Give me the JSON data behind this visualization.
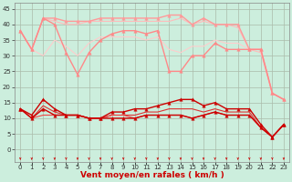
{
  "background_color": "#cceedd",
  "grid_color": "#aabbaa",
  "xlabel": "Vent moyen/en rafales ( km/h )",
  "xlabel_color": "#cc0000",
  "xlabel_fontsize": 6.5,
  "yticks": [
    0,
    5,
    10,
    15,
    20,
    25,
    30,
    35,
    40,
    45
  ],
  "xticks": [
    0,
    1,
    2,
    3,
    4,
    5,
    6,
    7,
    8,
    9,
    10,
    11,
    12,
    13,
    14,
    15,
    16,
    17,
    18,
    19,
    20,
    21,
    22,
    23
  ],
  "ylim": [
    -4,
    47
  ],
  "xlim": [
    -0.5,
    23.5
  ],
  "series": [
    {
      "x": [
        0,
        1,
        2,
        3,
        4,
        5,
        6,
        7,
        8,
        9,
        10,
        11,
        12,
        13,
        14,
        15,
        16,
        17,
        18,
        19,
        20,
        21,
        22,
        23
      ],
      "y": [
        38,
        32,
        42,
        42,
        41,
        41,
        41,
        42,
        42,
        42,
        42,
        42,
        42,
        43,
        43,
        40,
        42,
        40,
        40,
        40,
        32,
        32,
        18,
        16
      ],
      "color": "#ff9999",
      "lw": 1.0,
      "marker": "^",
      "ms": 2.5,
      "zorder": 2
    },
    {
      "x": [
        0,
        1,
        2,
        3,
        4,
        5,
        6,
        7,
        8,
        9,
        10,
        11,
        12,
        13,
        14,
        15,
        16,
        17,
        18,
        19,
        20,
        21,
        22,
        23
      ],
      "y": [
        38,
        32,
        42,
        40,
        31,
        24,
        31,
        35,
        37,
        38,
        38,
        37,
        38,
        25,
        25,
        30,
        30,
        34,
        32,
        32,
        32,
        32,
        18,
        16
      ],
      "color": "#ff8888",
      "lw": 1.0,
      "marker": "^",
      "ms": 2.5,
      "zorder": 2
    },
    {
      "x": [
        0,
        1,
        2,
        3,
        4,
        5,
        6,
        7,
        8,
        9,
        10,
        11,
        12,
        13,
        14,
        15,
        16,
        17,
        18,
        19,
        20,
        21,
        22,
        23
      ],
      "y": [
        38,
        32,
        42,
        41,
        40,
        40,
        41,
        41,
        41,
        41,
        41,
        41,
        41,
        41,
        42,
        40,
        41,
        40,
        40,
        39,
        32,
        31,
        18,
        16
      ],
      "color": "#ffbbbb",
      "lw": 0.8,
      "marker": null,
      "ms": 0,
      "zorder": 1
    },
    {
      "x": [
        0,
        1,
        2,
        3,
        4,
        5,
        6,
        7,
        8,
        9,
        10,
        11,
        12,
        13,
        14,
        15,
        16,
        17,
        18,
        19,
        20,
        21,
        22,
        23
      ],
      "y": [
        38,
        32,
        30,
        35,
        33,
        30,
        34,
        36,
        36,
        36,
        36,
        35,
        36,
        32,
        31,
        33,
        33,
        35,
        34,
        34,
        32,
        32,
        18,
        16
      ],
      "color": "#ffcccc",
      "lw": 0.8,
      "marker": null,
      "ms": 0,
      "zorder": 1
    },
    {
      "x": [
        0,
        1,
        2,
        3,
        4,
        5,
        6,
        7,
        8,
        9,
        10,
        11,
        12,
        13,
        14,
        15,
        16,
        17,
        18,
        19,
        20,
        21,
        22,
        23
      ],
      "y": [
        13,
        11,
        16,
        13,
        11,
        11,
        10,
        10,
        12,
        12,
        13,
        13,
        14,
        15,
        16,
        16,
        14,
        15,
        13,
        13,
        13,
        8,
        4,
        8
      ],
      "color": "#cc0000",
      "lw": 1.0,
      "marker": "^",
      "ms": 2.5,
      "zorder": 4
    },
    {
      "x": [
        0,
        1,
        2,
        3,
        4,
        5,
        6,
        7,
        8,
        9,
        10,
        11,
        12,
        13,
        14,
        15,
        16,
        17,
        18,
        19,
        20,
        21,
        22,
        23
      ],
      "y": [
        13,
        10,
        13,
        11,
        11,
        11,
        10,
        10,
        10,
        10,
        10,
        11,
        11,
        11,
        11,
        10,
        11,
        12,
        11,
        11,
        11,
        7,
        4,
        8
      ],
      "color": "#cc0000",
      "lw": 1.0,
      "marker": "^",
      "ms": 2.5,
      "zorder": 4
    },
    {
      "x": [
        0,
        1,
        2,
        3,
        4,
        5,
        6,
        7,
        8,
        9,
        10,
        11,
        12,
        13,
        14,
        15,
        16,
        17,
        18,
        19,
        20,
        21,
        22,
        23
      ],
      "y": [
        13,
        10,
        14,
        12,
        11,
        11,
        10,
        10,
        11,
        11,
        11,
        12,
        12,
        13,
        13,
        13,
        12,
        13,
        12,
        12,
        12,
        7,
        4,
        8
      ],
      "color": "#dd3333",
      "lw": 0.8,
      "marker": null,
      "ms": 0,
      "zorder": 3
    },
    {
      "x": [
        0,
        1,
        2,
        3,
        4,
        5,
        6,
        7,
        8,
        9,
        10,
        11,
        12,
        13,
        14,
        15,
        16,
        17,
        18,
        19,
        20,
        21,
        22,
        23
      ],
      "y": [
        13,
        10,
        11,
        11,
        11,
        11,
        10,
        10,
        11,
        11,
        10,
        11,
        11,
        11,
        11,
        10,
        11,
        12,
        11,
        11,
        11,
        7,
        4,
        8
      ],
      "color": "#ee4444",
      "lw": 0.8,
      "marker": null,
      "ms": 0,
      "zorder": 3
    }
  ],
  "tick_fontsize": 5,
  "ytick_color": "#333333",
  "xtick_color": "#333333"
}
